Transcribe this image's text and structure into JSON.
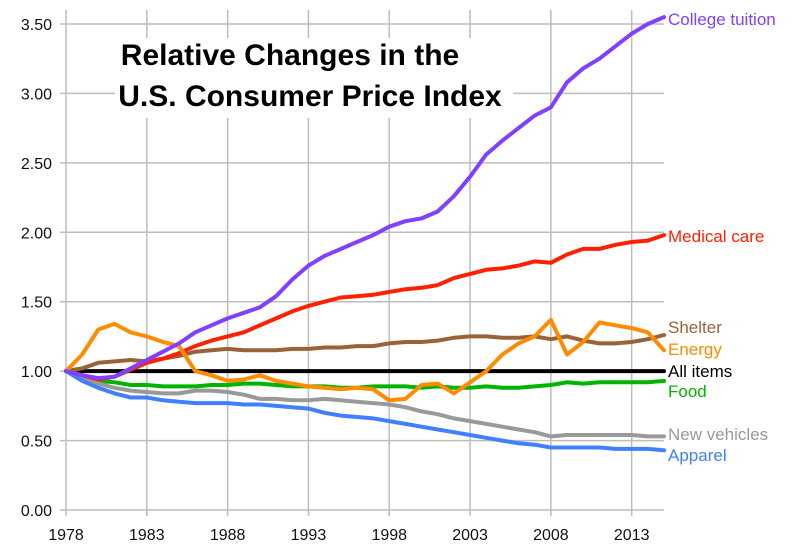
{
  "chart_data": {
    "type": "line",
    "title": [
      "Relative Changes in the",
      "U.S. Consumer Price Index"
    ],
    "xlabel": "",
    "ylabel": "",
    "xlim": [
      1978,
      2015
    ],
    "ylim": [
      0,
      3.5
    ],
    "grid": true,
    "legend": "inline-right",
    "xticks": [
      "1978",
      "1983",
      "1988",
      "1993",
      "1998",
      "2003",
      "2008",
      "2013"
    ],
    "xtick_values": [
      1978,
      1983,
      1988,
      1993,
      1998,
      2003,
      2008,
      2013
    ],
    "yticks": [
      "0.00",
      "0.50",
      "1.00",
      "1.50",
      "2.00",
      "2.50",
      "3.00",
      "3.50"
    ],
    "ytick_values": [
      0,
      0.5,
      1.0,
      1.5,
      2.0,
      2.5,
      3.0,
      3.5
    ],
    "x": [
      1978,
      1979,
      1980,
      1981,
      1982,
      1983,
      1984,
      1985,
      1986,
      1987,
      1988,
      1989,
      1990,
      1991,
      1992,
      1993,
      1994,
      1995,
      1996,
      1997,
      1998,
      1999,
      2000,
      2001,
      2002,
      2003,
      2004,
      2005,
      2006,
      2007,
      2008,
      2009,
      2010,
      2011,
      2012,
      2013,
      2014,
      2015
    ],
    "series": [
      {
        "name": "College tuition",
        "color": "#8040ff",
        "values": [
          1.0,
          0.97,
          0.95,
          0.96,
          1.02,
          1.08,
          1.14,
          1.2,
          1.28,
          1.33,
          1.38,
          1.42,
          1.46,
          1.54,
          1.66,
          1.76,
          1.83,
          1.88,
          1.93,
          1.98,
          2.04,
          2.08,
          2.1,
          2.15,
          2.26,
          2.4,
          2.56,
          2.66,
          2.75,
          2.84,
          2.9,
          3.08,
          3.18,
          3.25,
          3.34,
          3.43,
          3.5,
          3.55
        ]
      },
      {
        "name": "Medical care",
        "color": "#ff2000",
        "values": [
          1.0,
          0.97,
          0.94,
          0.96,
          1.01,
          1.06,
          1.09,
          1.13,
          1.18,
          1.22,
          1.25,
          1.28,
          1.33,
          1.38,
          1.43,
          1.47,
          1.5,
          1.53,
          1.54,
          1.55,
          1.57,
          1.59,
          1.6,
          1.62,
          1.67,
          1.7,
          1.73,
          1.74,
          1.76,
          1.79,
          1.78,
          1.84,
          1.88,
          1.88,
          1.91,
          1.93,
          1.94,
          1.98
        ]
      },
      {
        "name": "Shelter",
        "color": "#9a6238",
        "values": [
          1.0,
          1.02,
          1.06,
          1.07,
          1.08,
          1.07,
          1.09,
          1.11,
          1.14,
          1.15,
          1.16,
          1.15,
          1.15,
          1.15,
          1.16,
          1.16,
          1.17,
          1.17,
          1.18,
          1.18,
          1.2,
          1.21,
          1.21,
          1.22,
          1.24,
          1.25,
          1.25,
          1.24,
          1.24,
          1.25,
          1.23,
          1.25,
          1.22,
          1.2,
          1.2,
          1.21,
          1.23,
          1.26
        ]
      },
      {
        "name": "Energy",
        "color": "#ff8c00",
        "values": [
          1.0,
          1.12,
          1.3,
          1.34,
          1.28,
          1.25,
          1.21,
          1.18,
          1.0,
          0.97,
          0.93,
          0.94,
          0.97,
          0.93,
          0.91,
          0.89,
          0.88,
          0.87,
          0.88,
          0.87,
          0.79,
          0.8,
          0.9,
          0.91,
          0.84,
          0.92,
          1.0,
          1.12,
          1.2,
          1.25,
          1.37,
          1.12,
          1.21,
          1.35,
          1.33,
          1.31,
          1.28,
          1.15
        ]
      },
      {
        "name": "All items",
        "color": "#000000",
        "values": [
          1.0,
          1.0,
          1.0,
          1.0,
          1.0,
          1.0,
          1.0,
          1.0,
          1.0,
          1.0,
          1.0,
          1.0,
          1.0,
          1.0,
          1.0,
          1.0,
          1.0,
          1.0,
          1.0,
          1.0,
          1.0,
          1.0,
          1.0,
          1.0,
          1.0,
          1.0,
          1.0,
          1.0,
          1.0,
          1.0,
          1.0,
          1.0,
          1.0,
          1.0,
          1.0,
          1.0,
          1.0,
          1.0
        ]
      },
      {
        "name": "Food",
        "color": "#00b400",
        "values": [
          1.0,
          0.96,
          0.93,
          0.92,
          0.9,
          0.9,
          0.89,
          0.89,
          0.89,
          0.9,
          0.9,
          0.91,
          0.91,
          0.9,
          0.89,
          0.89,
          0.89,
          0.88,
          0.88,
          0.89,
          0.89,
          0.89,
          0.88,
          0.89,
          0.88,
          0.88,
          0.89,
          0.88,
          0.88,
          0.89,
          0.9,
          0.92,
          0.91,
          0.92,
          0.92,
          0.92,
          0.92,
          0.93
        ]
      },
      {
        "name": "New vehicles",
        "color": "#999999",
        "values": [
          1.0,
          0.95,
          0.91,
          0.88,
          0.86,
          0.85,
          0.84,
          0.84,
          0.86,
          0.86,
          0.85,
          0.83,
          0.8,
          0.8,
          0.79,
          0.79,
          0.8,
          0.79,
          0.78,
          0.77,
          0.76,
          0.74,
          0.71,
          0.69,
          0.66,
          0.64,
          0.62,
          0.6,
          0.58,
          0.56,
          0.53,
          0.54,
          0.54,
          0.54,
          0.54,
          0.54,
          0.53,
          0.53
        ]
      },
      {
        "name": "Apparel",
        "color": "#4080ff",
        "values": [
          1.0,
          0.93,
          0.88,
          0.84,
          0.81,
          0.81,
          0.79,
          0.78,
          0.77,
          0.77,
          0.77,
          0.76,
          0.76,
          0.75,
          0.74,
          0.73,
          0.7,
          0.68,
          0.67,
          0.66,
          0.64,
          0.62,
          0.6,
          0.58,
          0.56,
          0.54,
          0.52,
          0.5,
          0.48,
          0.47,
          0.45,
          0.45,
          0.45,
          0.45,
          0.44,
          0.44,
          0.44,
          0.43
        ]
      }
    ],
    "labels": [
      {
        "name": "College tuition",
        "color": "#8040ff"
      },
      {
        "name": "Medical care",
        "color": "#ff2000"
      },
      {
        "name": "Shelter",
        "color": "#9a6238"
      },
      {
        "name": "Energy",
        "color": "#ff8c00"
      },
      {
        "name": "All items",
        "color": "#000000"
      },
      {
        "name": "Food",
        "color": "#00b400"
      },
      {
        "name": "New vehicles",
        "color": "#999999"
      },
      {
        "name": "Apparel",
        "color": "#4080ff"
      }
    ]
  }
}
